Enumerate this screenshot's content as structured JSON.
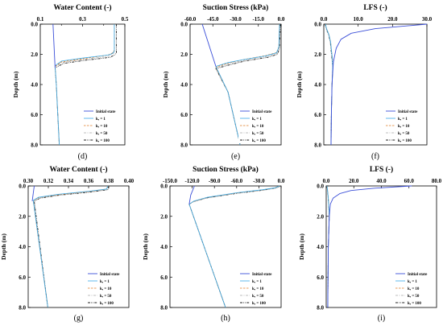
{
  "colors": {
    "initial": "#3b4fd8",
    "k1": "#38a9e8",
    "k10": "#e07b22",
    "k50": "#a9a9a9",
    "k100": "#222222"
  },
  "legend": [
    "Initial state",
    "kₑ = 1",
    "kₑ = 10",
    "kₑ = 50",
    "kₑ = 100"
  ],
  "chart_data": [
    {
      "type": "line",
      "panel": "(d)",
      "title": "Water Content (-)",
      "xlabel": "Water Content (-)",
      "ylabel": "Depth (m)",
      "xlim": [
        0.1,
        0.5
      ],
      "ylim": [
        0,
        8
      ],
      "xticks": [
        "0.1",
        "0.3",
        "0.5"
      ],
      "xminor": [
        0.2,
        0.4
      ],
      "yticks": [
        "0.0",
        "2.0",
        "4.0",
        "6.0",
        "8.0"
      ],
      "series": [
        {
          "name": "Initial state",
          "x": [
            0.16,
            0.17
          ],
          "y": [
            0.0,
            2.9
          ]
        },
        {
          "name": "kₑ = 1",
          "x": [
            0.45,
            0.45,
            0.44,
            0.42,
            0.3,
            0.2,
            0.17,
            0.176,
            0.19
          ],
          "y": [
            0.0,
            1.8,
            1.95,
            2.05,
            2.25,
            2.45,
            2.75,
            4.0,
            8.0
          ]
        },
        {
          "name": "kₑ = 10",
          "x": [
            0.45,
            0.45,
            0.44,
            0.42,
            0.3,
            0.2,
            0.17,
            0.176,
            0.19
          ],
          "y": [
            0.0,
            1.75,
            1.92,
            2.05,
            2.3,
            2.5,
            2.8,
            4.0,
            8.0
          ]
        },
        {
          "name": "kₑ = 50",
          "x": [
            0.45,
            0.45,
            0.44,
            0.42,
            0.3,
            0.2,
            0.17,
            0.176,
            0.19
          ],
          "y": [
            0.0,
            1.85,
            2.0,
            2.15,
            2.35,
            2.55,
            2.85,
            4.0,
            8.0
          ]
        },
        {
          "name": "kₑ = 100",
          "x": [
            0.46,
            0.46,
            0.45,
            0.43,
            0.31,
            0.21,
            0.17,
            0.176,
            0.19
          ],
          "y": [
            0.0,
            1.9,
            2.05,
            2.2,
            2.4,
            2.6,
            2.9,
            4.0,
            8.0
          ]
        }
      ]
    },
    {
      "type": "line",
      "panel": "(e)",
      "title": "Suction Stress (kPa)",
      "xlabel": "Suction Stress (kPa)",
      "ylabel": "Depth (m)",
      "xlim": [
        -60,
        0
      ],
      "ylim": [
        0,
        8
      ],
      "xticks": [
        "-60.0",
        "-45.0",
        "-30.0",
        "-15.0",
        "0.0"
      ],
      "yticks": [
        "0.0",
        "2.0",
        "4.0",
        "6.0",
        "8.0"
      ],
      "series": [
        {
          "name": "Initial state",
          "x": [
            -52,
            -43
          ],
          "y": [
            0.0,
            2.8
          ]
        },
        {
          "name": "kₑ = 1",
          "x": [
            -1,
            -1.5,
            -3,
            -10,
            -25,
            -35,
            -43,
            -35,
            -27
          ],
          "y": [
            0.0,
            1.5,
            1.9,
            2.1,
            2.35,
            2.55,
            2.8,
            4.5,
            8.0
          ]
        },
        {
          "name": "kₑ = 10",
          "x": [
            -1,
            -1.5,
            -3,
            -10,
            -25,
            -35,
            -43,
            -35,
            -27
          ],
          "y": [
            0.0,
            1.5,
            1.88,
            2.08,
            2.35,
            2.58,
            2.85,
            4.5,
            8.0
          ]
        },
        {
          "name": "kₑ = 50",
          "x": [
            -1,
            -1.5,
            -3,
            -10,
            -25,
            -35,
            -43,
            -35,
            -27
          ],
          "y": [
            0.0,
            1.55,
            1.95,
            2.15,
            2.42,
            2.65,
            2.9,
            4.5,
            8.0
          ]
        },
        {
          "name": "kₑ = 100",
          "x": [
            -0.5,
            -1,
            -2.5,
            -9,
            -24,
            -34,
            -43,
            -35,
            -27
          ],
          "y": [
            0.0,
            1.6,
            2.0,
            2.2,
            2.45,
            2.7,
            2.95,
            4.5,
            8.0
          ]
        }
      ]
    },
    {
      "type": "line",
      "panel": "(f)",
      "title": "LFS (-)",
      "xlabel": "LFS (-)",
      "ylabel": "Depth (m)",
      "xlim": [
        0,
        30
      ],
      "ylim": [
        0,
        8
      ],
      "xticks": [
        "0.0",
        "10.0",
        "20.0",
        "30.0"
      ],
      "yticks": [
        "0.0",
        "2.0",
        "4.0",
        "6.0",
        "8.0"
      ],
      "series": [
        {
          "name": "Initial state",
          "x": [
            30.0,
            15.0,
            8.0,
            5.0,
            3.6,
            2.8,
            2.4,
            2.2,
            2.1
          ],
          "y": [
            0.0,
            0.3,
            0.6,
            1.0,
            1.6,
            2.5,
            4.0,
            6.0,
            8.0
          ]
        },
        {
          "name": "kₑ = 1",
          "x": [
            0.5,
            0.8,
            1.5,
            2.0,
            2.3,
            2.5,
            2.6,
            2.4,
            2.2,
            2.1
          ],
          "y": [
            0.0,
            0.3,
            0.7,
            1.2,
            1.9,
            2.3,
            2.8,
            4.0,
            6.0,
            8.0
          ]
        },
        {
          "name": "kₑ = 10",
          "x": [
            0.5,
            0.8,
            1.5,
            2.0,
            2.3,
            2.5,
            2.6,
            2.4,
            2.2,
            2.1
          ],
          "y": [
            0.0,
            0.3,
            0.7,
            1.2,
            1.9,
            2.3,
            2.8,
            4.0,
            6.0,
            8.0
          ]
        },
        {
          "name": "kₑ = 50",
          "x": [
            0.5,
            0.8,
            1.5,
            2.0,
            2.3,
            2.5,
            2.6,
            2.4,
            2.2,
            2.1
          ],
          "y": [
            0.0,
            0.3,
            0.7,
            1.2,
            1.9,
            2.3,
            2.8,
            4.0,
            6.0,
            8.0
          ]
        },
        {
          "name": "kₑ = 100",
          "x": [
            0.4,
            0.7,
            1.4,
            1.9,
            2.2,
            2.4,
            2.6,
            2.4,
            2.2,
            2.1
          ],
          "y": [
            0.0,
            0.3,
            0.7,
            1.2,
            1.9,
            2.3,
            2.8,
            4.0,
            6.0,
            8.0
          ]
        }
      ]
    },
    {
      "type": "line",
      "panel": "(g)",
      "title": "Water Content (-)",
      "xlabel": "Water Content (-)",
      "ylabel": "Depth (m)",
      "xlim": [
        0.3,
        0.4
      ],
      "ylim": [
        0,
        8
      ],
      "xticks": [
        "0.30",
        "0.32",
        "0.34",
        "0.36",
        "0.38",
        "0.40"
      ],
      "yticks": [
        "0.0",
        "2.0",
        "4.0",
        "6.0",
        "8.0"
      ],
      "series": [
        {
          "name": "Initial state",
          "x": [
            0.306,
            0.304
          ],
          "y": [
            0.0,
            1.0
          ]
        },
        {
          "name": "kₑ = 1",
          "x": [
            0.379,
            0.378,
            0.36,
            0.33,
            0.31,
            0.305,
            0.3195
          ],
          "y": [
            0.0,
            0.2,
            0.35,
            0.55,
            0.75,
            0.95,
            8.0
          ]
        },
        {
          "name": "kₑ = 10",
          "x": [
            0.379,
            0.378,
            0.36,
            0.33,
            0.31,
            0.305,
            0.3195
          ],
          "y": [
            0.0,
            0.2,
            0.37,
            0.57,
            0.77,
            0.97,
            8.0
          ]
        },
        {
          "name": "kₑ = 50",
          "x": [
            0.379,
            0.378,
            0.36,
            0.33,
            0.31,
            0.305,
            0.3195
          ],
          "y": [
            0.0,
            0.22,
            0.38,
            0.58,
            0.78,
            0.98,
            8.0
          ]
        },
        {
          "name": "kₑ = 100",
          "x": [
            0.38,
            0.379,
            0.362,
            0.332,
            0.312,
            0.306,
            0.3195
          ],
          "y": [
            0.0,
            0.25,
            0.4,
            0.6,
            0.8,
            1.0,
            8.0
          ]
        }
      ]
    },
    {
      "type": "line",
      "panel": "(h)",
      "title": "Suction Stress (kPa)",
      "xlabel": "Suction Stress (kPa)",
      "ylabel": "Depth (m)",
      "xlim": [
        -150,
        0
      ],
      "ylim": [
        0,
        8
      ],
      "xticks": [
        "-150.0",
        "-120.0",
        "-90.0",
        "-60.0",
        "-30.0",
        "0.0"
      ],
      "yticks": [
        "0.0",
        "2.0",
        "4.0",
        "6.0",
        "8.0"
      ],
      "series": [
        {
          "name": "Initial state",
          "x": [
            -117,
            -122,
            -124
          ],
          "y": [
            0.0,
            0.6,
            1.2
          ]
        },
        {
          "name": "kₑ = 1",
          "x": [
            -2,
            -8,
            -25,
            -60,
            -100,
            -118,
            -124,
            -75
          ],
          "y": [
            0.0,
            0.12,
            0.25,
            0.45,
            0.75,
            1.0,
            1.2,
            8.0
          ]
        },
        {
          "name": "kₑ = 10",
          "x": [
            -2,
            -8,
            -25,
            -60,
            -100,
            -118,
            -124,
            -75
          ],
          "y": [
            0.0,
            0.12,
            0.26,
            0.46,
            0.76,
            1.01,
            1.2,
            8.0
          ]
        },
        {
          "name": "kₑ = 50",
          "x": [
            -2,
            -8,
            -25,
            -60,
            -100,
            -118,
            -124,
            -75
          ],
          "y": [
            0.0,
            0.13,
            0.27,
            0.47,
            0.77,
            1.02,
            1.2,
            8.0
          ]
        },
        {
          "name": "kₑ = 100",
          "x": [
            -1,
            -7,
            -24,
            -59,
            -99,
            -118,
            -124,
            -75
          ],
          "y": [
            0.0,
            0.14,
            0.28,
            0.48,
            0.78,
            1.03,
            1.2,
            8.0
          ]
        }
      ]
    },
    {
      "type": "line",
      "panel": "(i)",
      "title": "LFS (-)",
      "xlabel": "LFS (-)",
      "ylabel": "Depth (m)",
      "xlim": [
        0,
        80
      ],
      "ylim": [
        0,
        8
      ],
      "xticks": [
        "0.0",
        "20.0",
        "40.0",
        "60.0",
        "80.0"
      ],
      "yticks": [
        "0.0",
        "2.0",
        "4.0",
        "6.0",
        "8.0"
      ],
      "series": [
        {
          "name": "Initial state",
          "x": [
            62,
            35,
            18,
            10,
            5,
            3,
            2.2,
            1.5,
            1.1
          ],
          "y": [
            0.0,
            0.15,
            0.3,
            0.5,
            0.8,
            1.2,
            2.0,
            4.0,
            8.0
          ]
        },
        {
          "name": "kₑ = 1",
          "x": [
            0.5,
            1.0,
            1.5,
            2.2,
            1.5,
            1.1
          ],
          "y": [
            0.0,
            0.3,
            0.8,
            2.0,
            4.0,
            8.0
          ]
        },
        {
          "name": "kₑ = 10",
          "x": [
            0.5,
            1.0,
            1.5,
            2.2,
            1.5,
            1.1
          ],
          "y": [
            0.0,
            0.3,
            0.8,
            2.0,
            4.0,
            8.0
          ]
        },
        {
          "name": "kₑ = 50",
          "x": [
            0.5,
            1.0,
            1.5,
            2.2,
            1.5,
            1.1
          ],
          "y": [
            0.0,
            0.3,
            0.8,
            2.0,
            4.0,
            8.0
          ]
        },
        {
          "name": "kₑ = 100",
          "x": [
            0.4,
            0.9,
            1.4,
            2.2,
            1.5,
            1.1
          ],
          "y": [
            0.0,
            0.3,
            0.8,
            2.0,
            4.0,
            8.0
          ]
        }
      ]
    }
  ]
}
